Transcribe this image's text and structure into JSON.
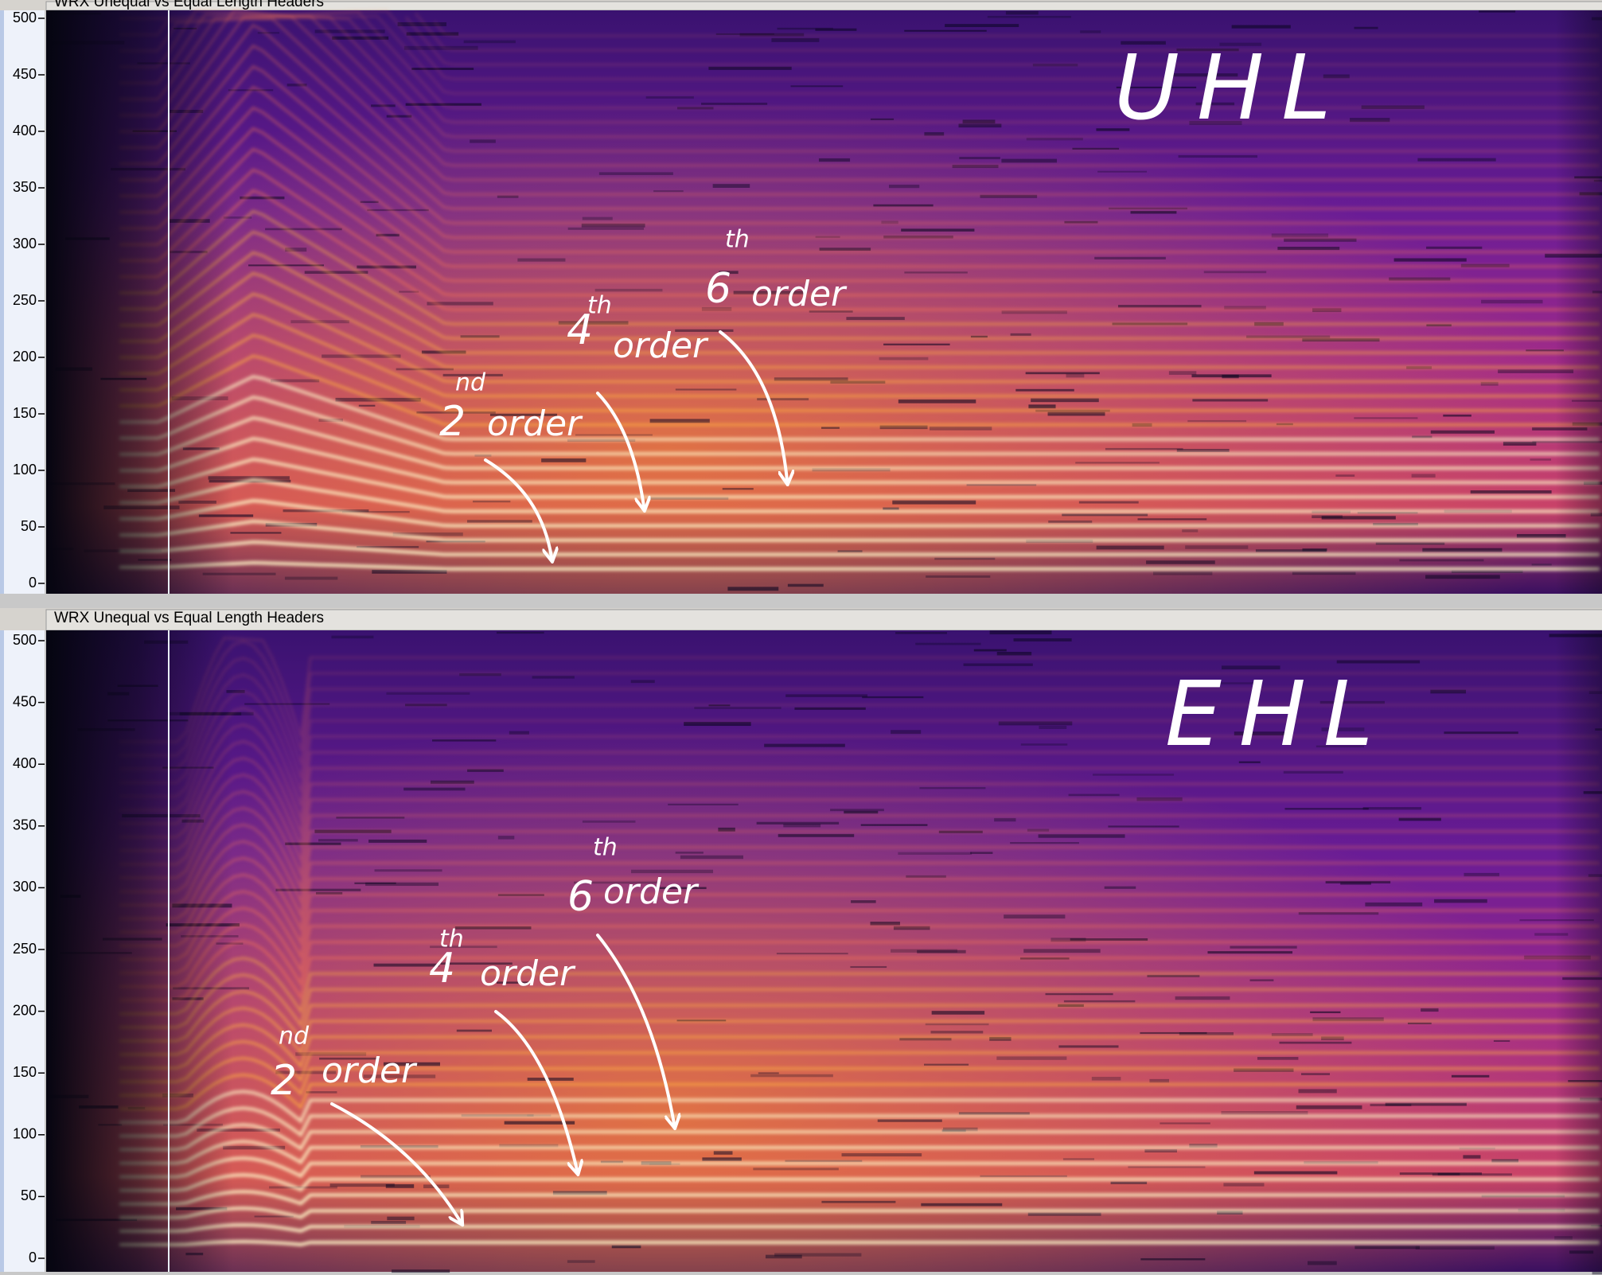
{
  "tracks": [
    {
      "title": "WRX Unequal vs Equal Length Headers",
      "ylim": [
        0,
        500
      ],
      "yticks": [
        0,
        50,
        100,
        150,
        200,
        250,
        300,
        350,
        400,
        450,
        500
      ],
      "label": "UHL",
      "annotations": [
        {
          "number": "2",
          "suffix": "nd",
          "word": "order"
        },
        {
          "number": "4",
          "suffix": "th",
          "word": "order"
        },
        {
          "number": "6",
          "suffix": "th",
          "word": "order"
        }
      ]
    },
    {
      "title": "WRX Unequal vs Equal Length Headers",
      "ylim": [
        0,
        500
      ],
      "yticks": [
        0,
        50,
        100,
        150,
        200,
        250,
        300,
        350,
        400,
        450,
        500
      ],
      "label": "EHL",
      "annotations": [
        {
          "number": "2",
          "suffix": "nd",
          "word": "order"
        },
        {
          "number": "4",
          "suffix": "th",
          "word": "order"
        },
        {
          "number": "6",
          "suffix": "th",
          "word": "order"
        }
      ]
    }
  ]
}
